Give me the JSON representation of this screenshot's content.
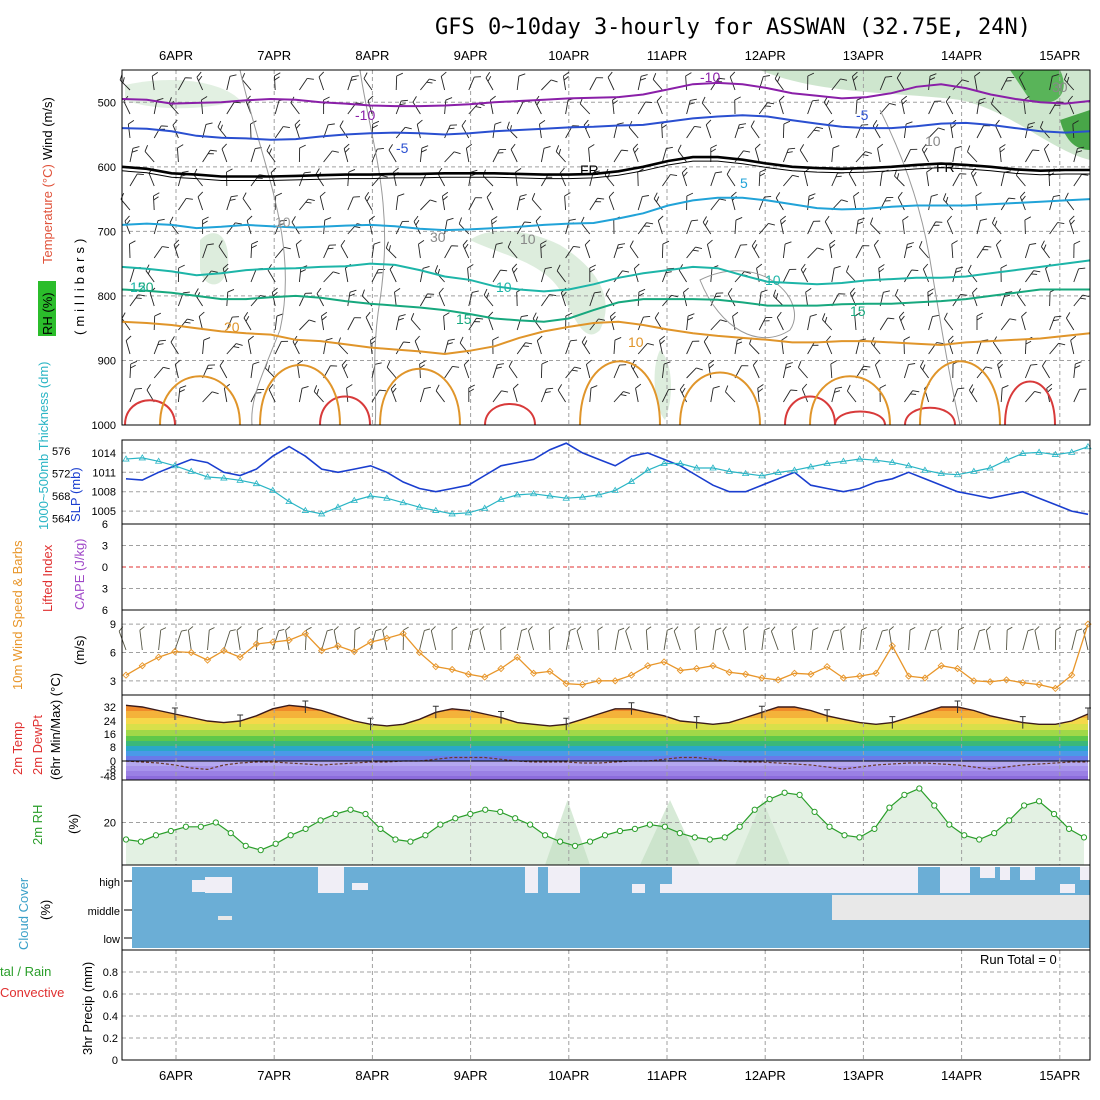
{
  "header": {
    "title": "GFS 0~10day 3-hourly for ASSWAN (32.75E, 24N)"
  },
  "dates": [
    "6APR",
    "7APR",
    "8APR",
    "9APR",
    "10APR",
    "11APR",
    "12APR",
    "13APR",
    "14APR",
    "15APR"
  ],
  "panel_labels": {
    "upper_rh": "RH (%)",
    "upper_temperature": "Temperature (°C)",
    "upper_wind": "Wind (m/s)",
    "upper_units": "(millibars)",
    "thickness": "1000~500mb Thickness (dm)",
    "slp": "SLP (mb)",
    "lifted_index": "Lifted Index",
    "cape": "CAPE (J/kg)",
    "wind10": "10m Wind Speed & Barbs",
    "wind10_units": "(m/s)",
    "temp2m": "2m Temp",
    "dew2m": "2m DewPt",
    "temp_units": "(6hr Min/Max) (°C)",
    "rh2m": "2m RH",
    "rh_units": "(%)",
    "cloud": "Cloud Cover",
    "cloud_units": "(%)",
    "precip_total": "tal / Rain",
    "precip_conv": "Convective",
    "precip_units": "3hr Precip (mm)",
    "run_total": "Run Total = 0"
  },
  "contour_labels": [
    "-10",
    "-10",
    "-5",
    "-5",
    "FR",
    "FR",
    "5",
    "10",
    "10",
    "10",
    "15",
    "15",
    "15",
    "20",
    "20",
    "10",
    "30",
    "10",
    "10",
    "30"
  ],
  "colors": {
    "temp_neg10": "#8a1fa8",
    "temp_neg5": "#2a4fd0",
    "temp_5": "#21a3d8",
    "temp_10": "#1db5a8",
    "temp_15": "#17a87e",
    "temp_20": "#e0952a",
    "temp_25": "#d83a3a",
    "slp": "#1a3ecf",
    "thickness": "#2ab5c5",
    "wind10": "#e8962a",
    "rh2m": "#2a9e2a",
    "cloud": "#6baed6",
    "cape": "#a048c8",
    "li": "#e03030"
  },
  "chart_data": [
    {
      "type": "line",
      "name": "upper-air",
      "ylabel": "millibars",
      "yticks": [
        500,
        600,
        700,
        800,
        900,
        1000
      ],
      "ylim": [
        450,
        1000
      ],
      "series": [
        {
          "name": "-10",
          "values": [
            495,
            496,
            502,
            501,
            500,
            497,
            495,
            496,
            500,
            502,
            505,
            506,
            506,
            505,
            503,
            500,
            498,
            496,
            494,
            493,
            492,
            488,
            480,
            472,
            470,
            472,
            478,
            486,
            490,
            494,
            492,
            486,
            476,
            472,
            478,
            488,
            495,
            500,
            502,
            498
          ]
        },
        {
          "name": "-5",
          "values": [
            540,
            541,
            545,
            552,
            555,
            556,
            558,
            557,
            553,
            550,
            548,
            547,
            548,
            550,
            548,
            545,
            543,
            541,
            539,
            538,
            536,
            535,
            530,
            525,
            522,
            520,
            522,
            528,
            533,
            538,
            540,
            540,
            537,
            533,
            532,
            535,
            540,
            545,
            547,
            545
          ]
        },
        {
          "name": "FR",
          "values": [
            600,
            603,
            610,
            612,
            615,
            615,
            615,
            614,
            613,
            612,
            612,
            611,
            611,
            610,
            610,
            610,
            611,
            612,
            612,
            611,
            607,
            600,
            591,
            585,
            585,
            589,
            595,
            600,
            602,
            603,
            602,
            600,
            597,
            595,
            597,
            600,
            604,
            606,
            605,
            605
          ]
        },
        {
          "name": "5",
          "values": [
            690,
            688,
            690,
            695,
            693,
            690,
            692,
            694,
            693,
            691,
            690,
            692,
            696,
            698,
            697,
            695,
            693,
            690,
            688,
            687,
            680,
            672,
            660,
            652,
            648,
            648,
            652,
            658,
            664,
            666,
            665,
            662,
            660,
            660,
            660,
            658,
            656,
            654,
            652,
            650
          ]
        },
        {
          "name": "10",
          "values": [
            755,
            758,
            762,
            768,
            765,
            760,
            758,
            757,
            755,
            754,
            750,
            752,
            760,
            770,
            775,
            785,
            790,
            793,
            790,
            782,
            772,
            765,
            760,
            755,
            757,
            768,
            778,
            780,
            782,
            780,
            776,
            774,
            772,
            772,
            770,
            765,
            760,
            755,
            750,
            745
          ]
        },
        {
          "name": "15",
          "values": [
            790,
            792,
            795,
            800,
            805,
            805,
            802,
            800,
            803,
            808,
            812,
            815,
            818,
            822,
            828,
            835,
            838,
            840,
            835,
            822,
            810,
            805,
            805,
            805,
            806,
            810,
            815,
            815,
            815,
            813,
            812,
            812,
            810,
            808,
            805,
            800,
            795,
            790,
            790,
            790
          ]
        },
        {
          "name": "20",
          "values": [
            840,
            842,
            845,
            850,
            855,
            858,
            860,
            868,
            870,
            875,
            880,
            883,
            886,
            890,
            885,
            878,
            865,
            855,
            848,
            842,
            840,
            845,
            852,
            858,
            862,
            865,
            868,
            872,
            872,
            870,
            870,
            872,
            874,
            876,
            872,
            870,
            868,
            866,
            862,
            858
          ]
        }
      ]
    },
    {
      "type": "line",
      "name": "slp-thickness",
      "yticks_left": [
        564,
        568,
        572,
        576
      ],
      "yticks_right": [
        1005,
        1008,
        1011,
        1014
      ],
      "series": [
        {
          "name": "SLP (mb)",
          "axis": "right",
          "values": [
            1010.0,
            1009.8,
            1011.0,
            1012.0,
            1013.0,
            1012.5,
            1011.0,
            1010.5,
            1011.5,
            1013.5,
            1015.0,
            1013.5,
            1011.5,
            1011.0,
            1011.5,
            1012.0,
            1011.0,
            1009.5,
            1008.5,
            1008.0,
            1008.5,
            1009.0,
            1010.5,
            1012.0,
            1012.5,
            1013.0,
            1014.5,
            1015.5,
            1014.0,
            1013.0,
            1012.0,
            1013.5,
            1014.0,
            1013.0,
            1012.0,
            1010.5,
            1009.0,
            1008.0,
            1008.0,
            1009.0,
            1010.0,
            1011.0,
            1009.0,
            1008.5,
            1008.0,
            1008.5,
            1009.5,
            1010.0,
            1011.0,
            1010.0,
            1009.0,
            1008.0,
            1007.5,
            1007.0,
            1007.5,
            1008.0,
            1007.0,
            1006.0,
            1005.0,
            1004.5
          ]
        },
        {
          "name": "Thickness (dm)",
          "axis": "left",
          "values": [
            574.6,
            574.8,
            574.2,
            573.4,
            572.4,
            571.4,
            571.2,
            570.8,
            570.2,
            569.0,
            567.0,
            565.4,
            564.8,
            566.0,
            567.2,
            568.0,
            567.6,
            566.8,
            566.0,
            565.4,
            564.8,
            565.0,
            565.8,
            567.4,
            568.2,
            568.4,
            568.0,
            567.6,
            567.8,
            568.2,
            569.0,
            570.6,
            572.6,
            573.8,
            573.8,
            573.0,
            573.0,
            572.4,
            572.0,
            571.6,
            572.2,
            572.6,
            573.2,
            573.8,
            574.2,
            574.6,
            574.4,
            574.0,
            573.4,
            572.6,
            572.0,
            571.8,
            572.4,
            573.0,
            574.4,
            575.6,
            575.8,
            575.4,
            575.8,
            576.8
          ]
        }
      ]
    },
    {
      "type": "line",
      "name": "cape-li",
      "yticks": [
        -6,
        -3,
        0,
        3,
        6
      ],
      "series": [
        {
          "name": "Lifted Index",
          "values": [
            0
          ]
        }
      ]
    },
    {
      "type": "line",
      "name": "wind10",
      "ylabel": "(m/s)",
      "yticks": [
        3,
        6,
        9
      ],
      "ylim": [
        1.5,
        10.5
      ],
      "series": [
        {
          "name": "10m Wind Speed",
          "values": [
            3.6,
            4.6,
            5.5,
            6.1,
            6.0,
            5.2,
            6.2,
            5.5,
            6.9,
            7.1,
            7.3,
            8.0,
            6.2,
            6.7,
            6.1,
            7.1,
            7.5,
            8.0,
            6.0,
            4.5,
            4.2,
            3.7,
            3.4,
            4.3,
            5.5,
            3.8,
            4.0,
            2.7,
            2.6,
            3.0,
            3.0,
            3.6,
            4.6,
            5.0,
            4.1,
            4.3,
            4.6,
            3.9,
            3.7,
            3.3,
            3.1,
            3.8,
            3.7,
            4.5,
            3.3,
            3.5,
            3.8,
            6.7,
            3.5,
            3.3,
            4.6,
            4.3,
            3.0,
            2.9,
            3.1,
            2.8,
            2.6,
            2.2,
            3.6,
            9.0
          ]
        }
      ]
    },
    {
      "type": "area",
      "name": "temp2m",
      "yticks": [
        -48,
        -8,
        0,
        8,
        16,
        24,
        32
      ],
      "series": [
        {
          "name": "2m Temp",
          "values": [
            33,
            32,
            30,
            28,
            26,
            24,
            23,
            24,
            27,
            31,
            33,
            32,
            30,
            27,
            24,
            22,
            21,
            22,
            25,
            29,
            31,
            30,
            28,
            26,
            23,
            22,
            21,
            22,
            25,
            28,
            31,
            31,
            29,
            27,
            24,
            23,
            22,
            23,
            26,
            29,
            32,
            32,
            30,
            27,
            25,
            23,
            22,
            23,
            26,
            29,
            32,
            32,
            30,
            27,
            25,
            23,
            22,
            22,
            24,
            28
          ]
        },
        {
          "name": "2m DewPt",
          "values": [
            0,
            -1,
            -2,
            -4,
            -7,
            -10,
            -4,
            -2,
            -1,
            -1,
            -2,
            -3,
            -4,
            -3,
            -2,
            -1,
            -1,
            0,
            0,
            1,
            2,
            2,
            2,
            1,
            0,
            -1,
            -1,
            -1,
            -2,
            -2,
            -1,
            0,
            0,
            1,
            2,
            2,
            1,
            0,
            -1,
            -1,
            -2,
            -3,
            -4,
            -6,
            -8,
            -6,
            -4,
            -3,
            -2,
            -2,
            -3,
            -4,
            -6,
            -8,
            -6,
            -4,
            -3,
            -2,
            -1,
            -1
          ]
        }
      ]
    },
    {
      "type": "area",
      "name": "rh2m",
      "ylabel": "(%)",
      "yticks": [
        20
      ],
      "series": [
        {
          "name": "2m RH",
          "values": [
            12,
            11,
            14,
            16,
            18,
            18,
            20,
            15,
            9,
            7,
            10,
            14,
            17,
            21,
            24,
            26,
            24,
            17,
            12,
            11,
            14,
            19,
            22,
            24,
            26,
            25,
            22,
            19,
            14,
            11,
            9,
            11,
            14,
            16,
            17,
            19,
            18,
            15,
            13,
            12,
            13,
            18,
            26,
            31,
            34,
            33,
            25,
            18,
            14,
            13,
            17,
            27,
            33,
            36,
            28,
            19,
            14,
            12,
            15,
            21,
            28,
            30,
            24,
            17,
            13
          ]
        }
      ]
    },
    {
      "type": "heatmap",
      "name": "cloud-cover",
      "categories": [
        "high",
        "middle",
        "low"
      ]
    },
    {
      "type": "line",
      "name": "precip",
      "ylabel": "3hr Precip (mm)",
      "yticks": [
        0,
        0.2,
        0.4,
        0.6,
        0.8
      ],
      "ylim": [
        0,
        1
      ],
      "series": [
        {
          "name": "Total / Rain",
          "values": [
            0
          ]
        }
      ]
    }
  ]
}
